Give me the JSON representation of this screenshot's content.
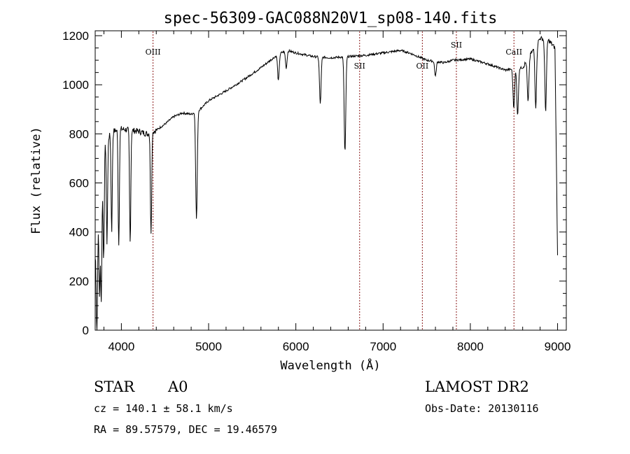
{
  "chart_data": {
    "type": "line",
    "title": "spec-56309-GAC088N20V1_sp08-140.fits",
    "xlabel": "Wavelength (Å)",
    "ylabel": "Flux (relative)",
    "xlim": [
      3700,
      9100
    ],
    "ylim": [
      0,
      1220
    ],
    "x_ticks": [
      4000,
      5000,
      6000,
      7000,
      8000,
      9000
    ],
    "y_ticks": [
      0,
      200,
      400,
      600,
      800,
      1000,
      1200
    ],
    "spectral_lines": [
      {
        "name": "OIII",
        "x": 4363
      },
      {
        "name": "SII",
        "x": 6731
      },
      {
        "name": "OII",
        "x": 7450
      },
      {
        "name": "SII",
        "x": 7840
      },
      {
        "name": "CaII",
        "x": 8500
      }
    ],
    "continuum": [
      [
        3700,
        300
      ],
      [
        3800,
        760
      ],
      [
        3900,
        810
      ],
      [
        4000,
        820
      ],
      [
        4100,
        815
      ],
      [
        4200,
        810
      ],
      [
        4300,
        800
      ],
      [
        4400,
        815
      ],
      [
        4500,
        840
      ],
      [
        4600,
        870
      ],
      [
        4700,
        885
      ],
      [
        4800,
        880
      ],
      [
        4900,
        900
      ],
      [
        5000,
        935
      ],
      [
        5200,
        975
      ],
      [
        5400,
        1020
      ],
      [
        5600,
        1070
      ],
      [
        5800,
        1125
      ],
      [
        5900,
        1140
      ],
      [
        6000,
        1130
      ],
      [
        6200,
        1115
      ],
      [
        6400,
        1110
      ],
      [
        6600,
        1115
      ],
      [
        6800,
        1120
      ],
      [
        7000,
        1130
      ],
      [
        7200,
        1140
      ],
      [
        7300,
        1130
      ],
      [
        7500,
        1100
      ],
      [
        7700,
        1090
      ],
      [
        7800,
        1100
      ],
      [
        8000,
        1105
      ],
      [
        8200,
        1085
      ],
      [
        8400,
        1060
      ],
      [
        8600,
        1070
      ],
      [
        8700,
        1130
      ],
      [
        8800,
        1190
      ],
      [
        8900,
        1180
      ],
      [
        8970,
        1150
      ],
      [
        9000,
        300
      ]
    ],
    "absorption": [
      {
        "x": 3720,
        "depth": 420
      },
      {
        "x": 3750,
        "depth": 380
      },
      {
        "x": 3770,
        "depth": 500
      },
      {
        "x": 3797,
        "depth": 460
      },
      {
        "x": 3835,
        "depth": 420
      },
      {
        "x": 3889,
        "depth": 400
      },
      {
        "x": 3970,
        "depth": 470
      },
      {
        "x": 4101,
        "depth": 460
      },
      {
        "x": 4340,
        "depth": 420
      },
      {
        "x": 4861,
        "depth": 440
      },
      {
        "x": 5800,
        "depth": 110
      },
      {
        "x": 5890,
        "depth": 70
      },
      {
        "x": 6280,
        "depth": 190
      },
      {
        "x": 6563,
        "depth": 390
      },
      {
        "x": 7600,
        "depth": 60
      },
      {
        "x": 8498,
        "depth": 160
      },
      {
        "x": 8542,
        "depth": 190
      },
      {
        "x": 8662,
        "depth": 180
      },
      {
        "x": 8750,
        "depth": 250
      },
      {
        "x": 8863,
        "depth": 290
      }
    ]
  },
  "info": {
    "object_class": "STAR",
    "subclass": "A0",
    "survey": "LAMOST DR2",
    "cz": "cz = 140.1 ± 58.1 km/s",
    "obs_date": "Obs-Date: 20130116",
    "coords": "RA =  89.57579, DEC =  19.46579"
  }
}
